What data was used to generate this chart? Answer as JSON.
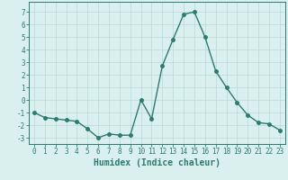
{
  "x": [
    0,
    1,
    2,
    3,
    4,
    5,
    6,
    7,
    8,
    9,
    10,
    11,
    12,
    13,
    14,
    15,
    16,
    17,
    18,
    19,
    20,
    21,
    22,
    23
  ],
  "y": [
    -1.0,
    -1.4,
    -1.5,
    -1.6,
    -1.7,
    -2.3,
    -3.0,
    -2.7,
    -2.8,
    -2.8,
    0.0,
    -1.5,
    2.7,
    4.8,
    6.8,
    7.0,
    5.0,
    2.3,
    1.0,
    -0.2,
    -1.2,
    -1.8,
    -1.9,
    -2.4
  ],
  "line_color": "#2d7a6e",
  "marker": "o",
  "markersize": 2.5,
  "linewidth": 1.0,
  "xlabel": "Humidex (Indice chaleur)",
  "xlabel_fontsize": 7,
  "xlabel_fontweight": "bold",
  "ylim": [
    -3.5,
    7.8
  ],
  "xlim": [
    -0.5,
    23.5
  ],
  "yticks": [
    -3,
    -2,
    -1,
    0,
    1,
    2,
    3,
    4,
    5,
    6,
    7
  ],
  "xticks": [
    0,
    1,
    2,
    3,
    4,
    5,
    6,
    7,
    8,
    9,
    10,
    11,
    12,
    13,
    14,
    15,
    16,
    17,
    18,
    19,
    20,
    21,
    22,
    23
  ],
  "bg_color": "#d9f0ef",
  "grid_color": "#b8d8d5",
  "tick_fontsize": 5.5
}
